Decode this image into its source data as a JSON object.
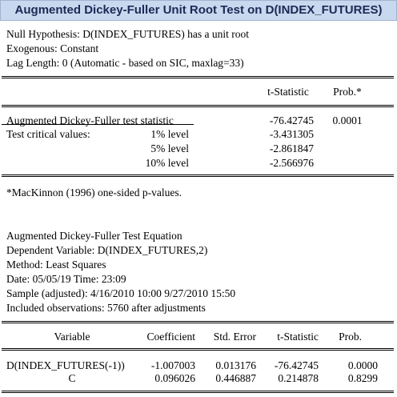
{
  "window": {
    "title": "Augmented Dickey-Fuller Unit Root Test on D(INDEX_FUTURES)"
  },
  "header": {
    "lines": [
      "Null Hypothesis: D(INDEX_FUTURES) has a unit root",
      "Exogenous: Constant",
      "Lag Length: 0 (Automatic - based on SIC, maxlag=33)"
    ]
  },
  "test_table": {
    "col_tstat": "t-Statistic",
    "col_prob": "Prob.*",
    "adf_label": "Augmented Dickey-Fuller test statistic",
    "adf_tstat": "-76.42745",
    "adf_prob": "0.0001",
    "crit_label": "Test critical values:",
    "crit_rows": [
      {
        "level": "1% level",
        "value": "-3.431305"
      },
      {
        "level": "5% level",
        "value": "-2.861847"
      },
      {
        "level": "10% level",
        "value": "-2.566976"
      }
    ],
    "footnote": "*MacKinnon (1996) one-sided p-values."
  },
  "equation": {
    "lines": [
      "Augmented Dickey-Fuller Test Equation",
      "Dependent Variable: D(INDEX_FUTURES,2)",
      "Method: Least Squares",
      "Date: 05/05/19   Time: 23:09",
      "Sample (adjusted): 4/16/2010 10:00 9/27/2010 15:50",
      "Included observations: 5760 after adjustments"
    ],
    "columns": [
      "Variable",
      "Coefficient",
      "Std. Error",
      "t-Statistic",
      "Prob."
    ],
    "rows": [
      {
        "variable": "D(INDEX_FUTURES(-1))",
        "coef": "-1.007003",
        "se": "0.013176",
        "t": "-76.42745",
        "prob": "0.0000"
      },
      {
        "variable": "C",
        "coef": "0.096026",
        "se": "0.446887",
        "t": "0.214878",
        "prob": "0.8299"
      }
    ]
  }
}
